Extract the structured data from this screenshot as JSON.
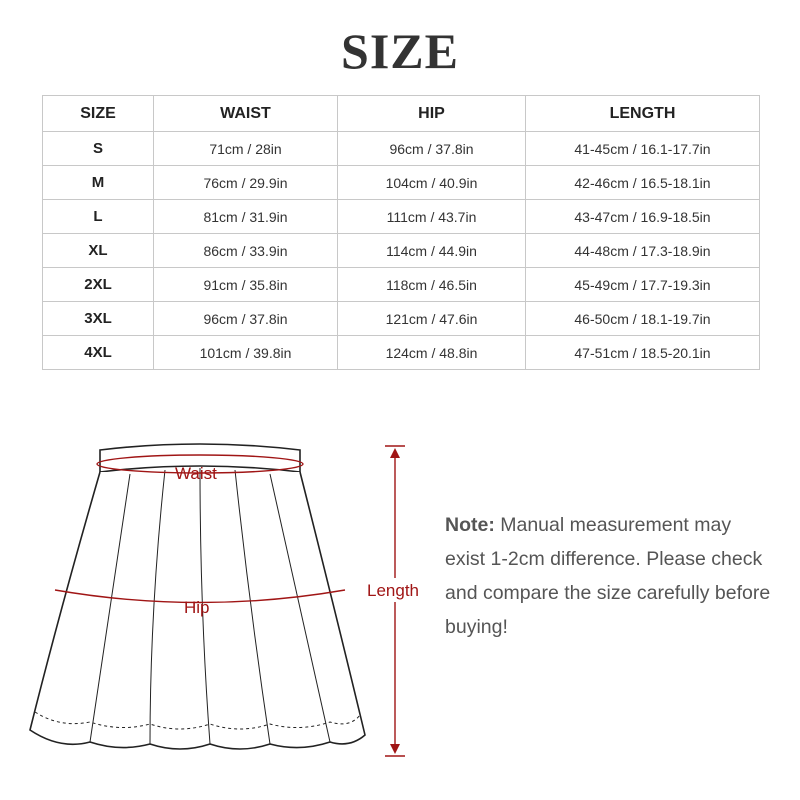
{
  "title": "SIZE",
  "table": {
    "headers": [
      "SIZE",
      "WAIST",
      "HIP",
      "LENGTH"
    ],
    "rows": [
      [
        "S",
        "71cm / 28in",
        "96cm / 37.8in",
        "41-45cm / 16.1-17.7in"
      ],
      [
        "M",
        "76cm / 29.9in",
        "104cm / 40.9in",
        "42-46cm / 16.5-18.1in"
      ],
      [
        "L",
        "81cm / 31.9in",
        "111cm / 43.7in",
        "43-47cm / 16.9-18.5in"
      ],
      [
        "XL",
        "86cm / 33.9in",
        "114cm / 44.9in",
        "44-48cm / 17.3-18.9in"
      ],
      [
        "2XL",
        "91cm / 35.8in",
        "118cm / 46.5in",
        "45-49cm / 17.7-19.3in"
      ],
      [
        "3XL",
        "96cm / 37.8in",
        "121cm / 47.6in",
        "46-50cm / 18.1-19.7in"
      ],
      [
        "4XL",
        "101cm / 39.8in",
        "124cm / 48.8in",
        "47-51cm / 18.5-20.1in"
      ]
    ]
  },
  "diagram": {
    "waist_label": "Waist",
    "hip_label": "Hip",
    "length_label": "Length",
    "measure_color": "#a01515"
  },
  "note": {
    "label": "Note:",
    "text": "Manual measurement may exist 1-2cm difference. Please check and compare the size carefully before buying!"
  }
}
